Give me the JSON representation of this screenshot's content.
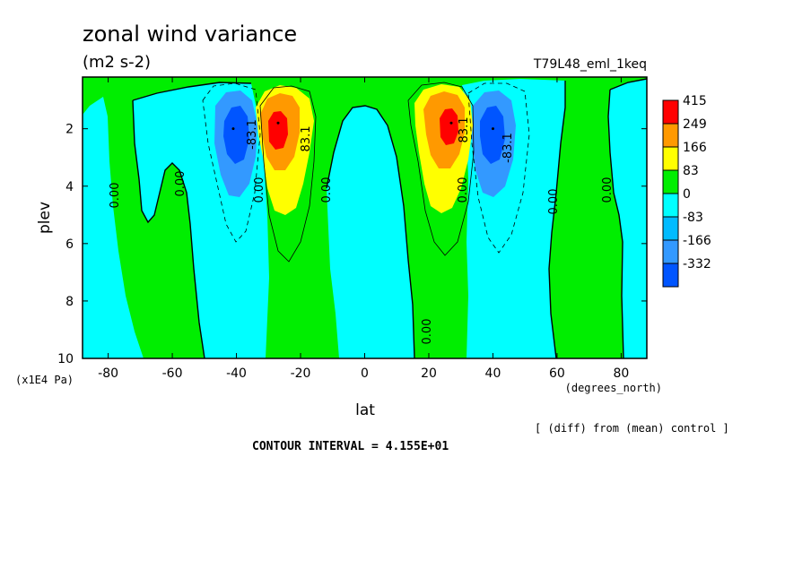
{
  "chart_data": {
    "type": "heatmap",
    "title": "zonal wind variance",
    "units": "(m2 s-2)",
    "run_label": "T79L48_eml_1keq",
    "xlabel": "lat",
    "x_units": "(degrees_north)",
    "ylabel": "plev",
    "y_units": "(x1E4 Pa)",
    "xlim": [
      -88,
      88
    ],
    "ylim": [
      10,
      0.2
    ],
    "x_ticks": [
      -80,
      -60,
      -40,
      -20,
      0,
      20,
      40,
      60,
      80
    ],
    "y_ticks": [
      2,
      4,
      6,
      8,
      10
    ],
    "legend": {
      "position": "right",
      "levels": [
        "415",
        "249",
        "166",
        "83",
        "0",
        "-83",
        "-166",
        "-332"
      ],
      "colors": [
        "#ff0000",
        "#ff9900",
        "#ffff00",
        "#00ee00",
        "#00ffff",
        "#00bbff",
        "#3399ff",
        "#0055ff"
      ]
    },
    "contour_labels": [
      "0.00",
      "0.00",
      "0.00",
      "0.00",
      "0.00",
      "0.00",
      "0.00",
      "0.00",
      "0.00",
      "83.1",
      "83.1",
      "-83.1",
      "-83.1"
    ],
    "features": [
      {
        "lat": -27,
        "plev": 1.8,
        "value": 415,
        "kind": "max"
      },
      {
        "lat": 27,
        "plev": 1.8,
        "value": 415,
        "kind": "max"
      },
      {
        "lat": -41,
        "plev": 2.0,
        "value": -332,
        "kind": "min"
      },
      {
        "lat": 40,
        "plev": 2.0,
        "value": -332,
        "kind": "min"
      }
    ],
    "footnote": "[ (diff) from (mean) control ]",
    "contour_interval": "CONTOUR INTERVAL = 4.155E+01"
  }
}
